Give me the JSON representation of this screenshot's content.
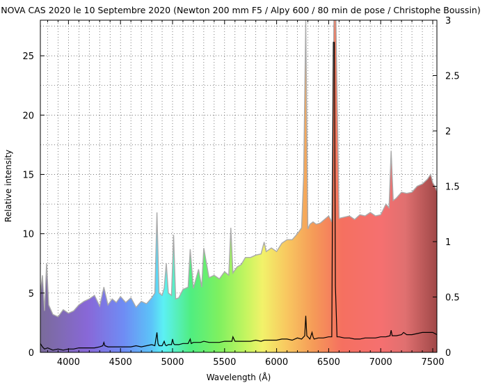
{
  "chart_data": {
    "type": "line",
    "title": "NOVA CAS 2020 le 10 Septembre 2020 (Newton 200 mm F5 / Alpy 600 / 80 min de pose / Christophe Boussin)",
    "xlabel": "Wavelength (Å)",
    "ylabel": "Relative intensity",
    "xlim": [
      3730,
      7540
    ],
    "ylim": [
      0,
      28
    ],
    "y2lim": [
      0,
      3
    ],
    "x_ticks": [
      4000,
      4500,
      5000,
      5500,
      6000,
      6500,
      7000,
      7500
    ],
    "y_ticks": [
      0,
      5,
      10,
      15,
      20,
      25
    ],
    "y2_ticks": [
      0,
      0.5,
      1,
      1.5,
      2,
      2.5,
      3
    ],
    "x_tick_labels": [
      "4000",
      "4500",
      "5000",
      "5500",
      "6000",
      "6500",
      "7000",
      "7500"
    ],
    "y_tick_labels": [
      "0",
      "5",
      "10",
      "15",
      "20",
      "25"
    ],
    "y2_tick_labels": [
      "0",
      "0.5",
      "1",
      "1.5",
      "2",
      "2.5",
      "3"
    ],
    "grid": true,
    "legend": "none",
    "series": [
      {
        "axis": "left",
        "color": "#aaaaaa",
        "fill": "wavelength-colored",
        "x": [
          3730,
          3750,
          3770,
          3790,
          3810,
          3850,
          3900,
          3950,
          4000,
          4050,
          4100,
          4150,
          4200,
          4250,
          4300,
          4340,
          4380,
          4420,
          4460,
          4500,
          4550,
          4600,
          4650,
          4700,
          4750,
          4800,
          4830,
          4850,
          4870,
          4900,
          4920,
          4940,
          4960,
          4990,
          5010,
          5030,
          5060,
          5100,
          5150,
          5170,
          5200,
          5250,
          5280,
          5300,
          5350,
          5400,
          5450,
          5500,
          5540,
          5560,
          5580,
          5620,
          5660,
          5700,
          5750,
          5800,
          5850,
          5880,
          5900,
          5950,
          6000,
          6050,
          6100,
          6150,
          6200,
          6240,
          6260,
          6280,
          6300,
          6320,
          6350,
          6380,
          6420,
          6460,
          6500,
          6530,
          6550,
          6570,
          6600,
          6650,
          6700,
          6750,
          6800,
          6850,
          6900,
          6950,
          7000,
          7050,
          7080,
          7100,
          7120,
          7150,
          7200,
          7250,
          7300,
          7350,
          7400,
          7450,
          7480,
          7500,
          7520,
          7540
        ],
        "y": [
          5.0,
          6.5,
          3.5,
          7.5,
          4.0,
          3.2,
          3.0,
          3.6,
          3.3,
          3.5,
          4.0,
          4.3,
          4.5,
          4.8,
          3.9,
          5.5,
          4.0,
          4.5,
          4.2,
          4.7,
          4.2,
          4.6,
          3.8,
          4.3,
          4.1,
          4.6,
          5.0,
          11.8,
          5.0,
          4.8,
          5.4,
          7.5,
          5.0,
          4.8,
          9.9,
          4.5,
          4.6,
          5.3,
          5.5,
          8.7,
          5.4,
          7.0,
          5.5,
          8.8,
          6.3,
          6.5,
          6.2,
          6.8,
          6.5,
          10.5,
          6.7,
          7.2,
          7.4,
          8.0,
          8.0,
          8.2,
          8.3,
          9.3,
          8.5,
          8.8,
          8.5,
          9.2,
          9.5,
          9.5,
          10.0,
          10.5,
          15.0,
          28.0,
          10.4,
          10.8,
          11.0,
          10.8,
          10.9,
          11.2,
          11.5,
          11.0,
          28.0,
          28.0,
          11.3,
          11.4,
          11.5,
          11.2,
          11.6,
          11.5,
          11.8,
          11.5,
          11.6,
          12.5,
          12.2,
          17.0,
          12.8,
          13.0,
          13.5,
          13.4,
          13.5,
          14.0,
          14.2,
          14.6,
          15.0,
          14.3,
          14.0,
          13.6
        ]
      },
      {
        "axis": "right",
        "color": "#000000",
        "x": [
          3730,
          3750,
          3770,
          3800,
          3850,
          3900,
          3950,
          4000,
          4050,
          4100,
          4150,
          4200,
          4250,
          4300,
          4330,
          4340,
          4350,
          4380,
          4420,
          4460,
          4500,
          4550,
          4600,
          4650,
          4700,
          4750,
          4800,
          4830,
          4850,
          4860,
          4870,
          4900,
          4920,
          4930,
          4940,
          4960,
          4990,
          5000,
          5010,
          5020,
          5060,
          5100,
          5150,
          5170,
          5180,
          5200,
          5250,
          5270,
          5300,
          5350,
          5400,
          5450,
          5500,
          5550,
          5570,
          5580,
          5600,
          5650,
          5700,
          5750,
          5800,
          5850,
          5880,
          5900,
          5950,
          6000,
          6050,
          6100,
          6150,
          6200,
          6240,
          6270,
          6280,
          6290,
          6320,
          6340,
          6350,
          6360,
          6400,
          6450,
          6500,
          6530,
          6545,
          6555,
          6565,
          6580,
          6600,
          6650,
          6700,
          6750,
          6800,
          6850,
          6900,
          6950,
          7000,
          7050,
          7090,
          7100,
          7110,
          7150,
          7200,
          7220,
          7250,
          7300,
          7350,
          7400,
          7450,
          7500,
          7540
        ],
        "y": [
          0.08,
          0.05,
          0.03,
          0.04,
          0.02,
          0.03,
          0.02,
          0.03,
          0.03,
          0.04,
          0.04,
          0.04,
          0.04,
          0.05,
          0.06,
          0.09,
          0.06,
          0.05,
          0.05,
          0.05,
          0.05,
          0.05,
          0.05,
          0.06,
          0.05,
          0.06,
          0.07,
          0.06,
          0.18,
          0.08,
          0.06,
          0.06,
          0.1,
          0.07,
          0.06,
          0.07,
          0.07,
          0.12,
          0.08,
          0.07,
          0.07,
          0.08,
          0.08,
          0.12,
          0.08,
          0.09,
          0.09,
          0.09,
          0.1,
          0.09,
          0.09,
          0.09,
          0.1,
          0.1,
          0.1,
          0.14,
          0.1,
          0.1,
          0.1,
          0.1,
          0.11,
          0.1,
          0.11,
          0.11,
          0.11,
          0.11,
          0.12,
          0.12,
          0.11,
          0.13,
          0.12,
          0.15,
          0.33,
          0.15,
          0.12,
          0.18,
          0.14,
          0.12,
          0.13,
          0.13,
          0.14,
          0.14,
          2.8,
          2.8,
          0.6,
          0.14,
          0.14,
          0.13,
          0.13,
          0.12,
          0.12,
          0.13,
          0.13,
          0.13,
          0.14,
          0.14,
          0.15,
          0.2,
          0.15,
          0.15,
          0.16,
          0.18,
          0.16,
          0.16,
          0.17,
          0.18,
          0.18,
          0.18,
          0.16
        ]
      }
    ]
  }
}
